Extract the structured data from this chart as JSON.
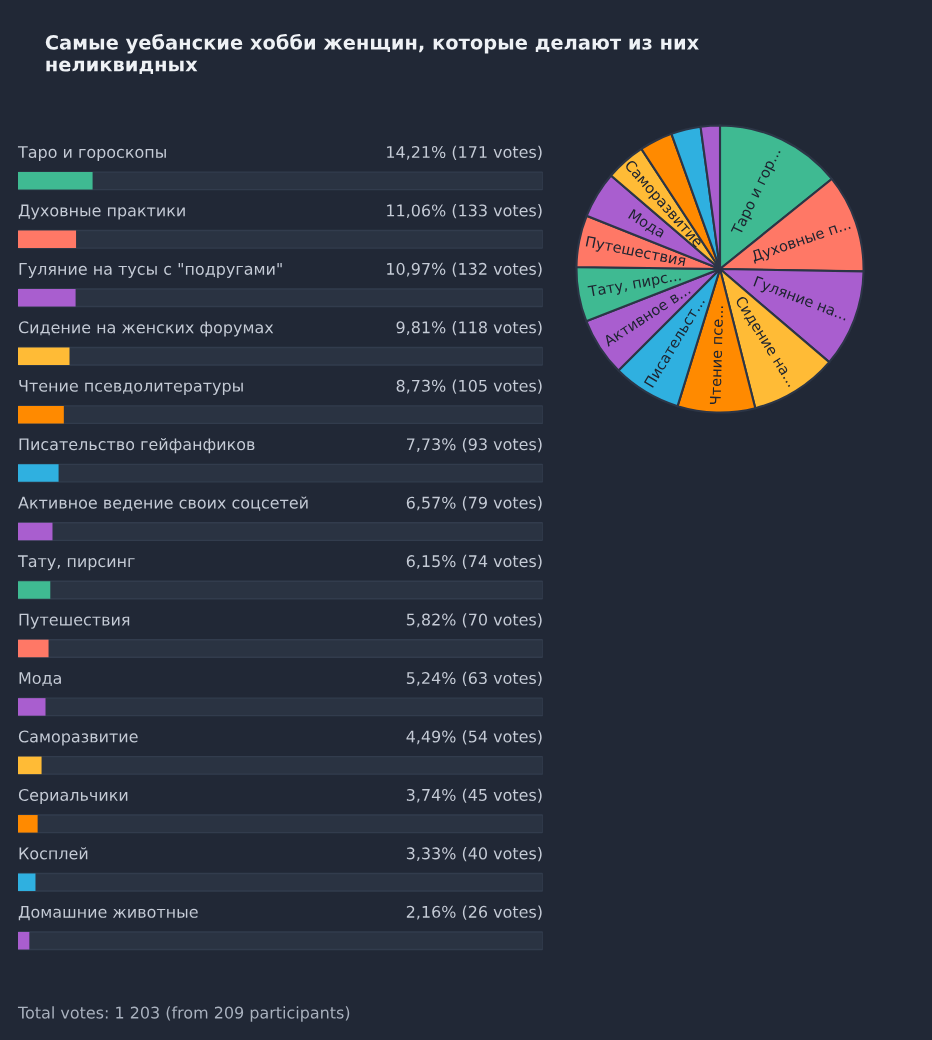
{
  "chart_data": [
    {
      "type": "bar",
      "orientation": "horizontal",
      "title": "Самые уебанские хобби женщин, которые делают из них неликвидных",
      "categories": [
        "Таро и гороскопы",
        "Духовные практики",
        "Гуляние на тусы с \"подругами\"",
        "Сидение на женских форумах",
        "Чтение псевдолитературы",
        "Писательство гейфанфиков",
        "Активное ведение своих соцсетей",
        "Тату, пирсинг",
        "Путешествия",
        "Мода",
        "Саморазвитие",
        "Сериальчики",
        "Косплей",
        "Домашние животные"
      ],
      "values": [
        14.21,
        11.06,
        10.97,
        9.81,
        8.73,
        7.73,
        6.57,
        6.15,
        5.82,
        5.24,
        4.49,
        3.74,
        3.33,
        2.16
      ],
      "value_labels": [
        "14,21% (171 votes)",
        "11,06% (133 votes)",
        "10,97% (132 votes)",
        "9,81% (118 votes)",
        "8,73% (105 votes)",
        "7,73% (93 votes)",
        "6,57% (79 votes)",
        "6,15% (74 votes)",
        "5,82% (70 votes)",
        "5,24% (63 votes)",
        "4,49% (54 votes)",
        "3,74% (45 votes)",
        "3,33% (40 votes)",
        "2,16% (26 votes)"
      ],
      "colors": [
        "#3fba92",
        "#ff7866",
        "#a95ecf",
        "#ffbb36",
        "#ff8a00",
        "#2fb0e0",
        "#a95ecf",
        "#3fba92",
        "#ff7866",
        "#a95ecf",
        "#ffbb36",
        "#ff8a00",
        "#2fb0e0",
        "#a95ecf"
      ],
      "xlim": [
        0,
        100
      ],
      "legend": false,
      "annotations": [
        "Total votes: 1 203 (from 209 participants)"
      ]
    },
    {
      "type": "pie",
      "categories": [
        "Таро и гор...",
        "Духовные п...",
        "Гуляние на...",
        "Сидение на...",
        "Чтение псе...",
        "Писательст...",
        "Активное в...",
        "Тату, пирс...",
        "Путешествия",
        "Мода",
        "Саморазвитие",
        null,
        null,
        null
      ],
      "values": [
        14.21,
        11.06,
        10.97,
        9.81,
        8.73,
        7.73,
        6.57,
        6.15,
        5.82,
        5.24,
        4.49,
        3.74,
        3.33,
        2.16
      ],
      "colors": [
        "#3fba92",
        "#ff7866",
        "#a95ecf",
        "#ffbb36",
        "#ff8a00",
        "#2fb0e0",
        "#a95ecf",
        "#3fba92",
        "#ff7866",
        "#a95ecf",
        "#ffbb36",
        "#ff8a00",
        "#2fb0e0",
        "#a95ecf"
      ],
      "legend": false
    }
  ]
}
